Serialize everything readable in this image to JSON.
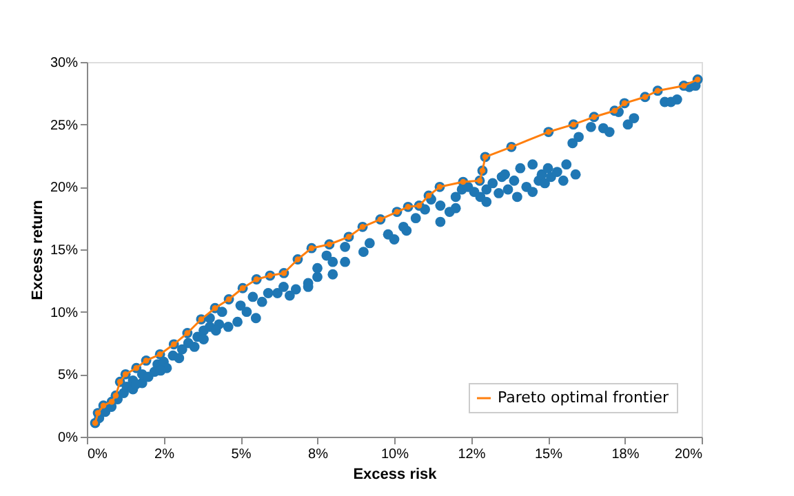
{
  "chart_data": {
    "type": "scatter",
    "xlabel": "Excess risk",
    "ylabel": "Excess return",
    "xlim": [
      0,
      20
    ],
    "ylim": [
      0,
      30
    ],
    "xticks": [
      {
        "value": 0,
        "label": "0%"
      },
      {
        "value": 2.5,
        "label": "2%"
      },
      {
        "value": 5,
        "label": "5%"
      },
      {
        "value": 7.5,
        "label": "8%"
      },
      {
        "value": 10,
        "label": "10%"
      },
      {
        "value": 12.5,
        "label": "12%"
      },
      {
        "value": 15,
        "label": "15%"
      },
      {
        "value": 17.5,
        "label": "18%"
      },
      {
        "value": 20,
        "label": "20%"
      }
    ],
    "yticks": [
      {
        "value": 0,
        "label": "0%"
      },
      {
        "value": 5,
        "label": "5%"
      },
      {
        "value": 10,
        "label": "10%"
      },
      {
        "value": 15,
        "label": "15%"
      },
      {
        "value": 20,
        "label": "20%"
      },
      {
        "value": 25,
        "label": "25%"
      },
      {
        "value": 30,
        "label": "30%"
      }
    ],
    "grid": false,
    "legend": "bottom right",
    "series": [
      {
        "color": "#1f77b4",
        "marker": "circle",
        "x": [
          0.27,
          0.36,
          0.54,
          0.81,
          0.94,
          1.08,
          1.26,
          1.61,
          1.93,
          2.38,
          2.83,
          3.27,
          3.72,
          4.17,
          4.62,
          5.07,
          5.52,
          5.96,
          6.41,
          6.86,
          7.31,
          7.89,
          8.52,
          8.97,
          9.55,
          10.09,
          10.45,
          10.81,
          11.12,
          11.48,
          12.24,
          12.78,
          12.87,
          12.96,
          13.81,
          15.02,
          15.83,
          16.5,
          17.17,
          17.49,
          18.16,
          18.57,
          19.42,
          19.87,
          0.4,
          0.6,
          0.8,
          1.0,
          1.2,
          1.3,
          1.5,
          1.5,
          1.8,
          1.8,
          2.0,
          2.2,
          2.3,
          2.5,
          2.6,
          2.8,
          3.0,
          3.1,
          3.3,
          3.5,
          3.6,
          3.8,
          4.0,
          4.0,
          4.3,
          4.4,
          4.6,
          4.9,
          5.0,
          5.2,
          5.4,
          5.7,
          5.9,
          6.2,
          6.4,
          6.8,
          7.2,
          7.5,
          7.5,
          7.8,
          8.0,
          8.4,
          8.4,
          9.0,
          9.2,
          9.8,
          10.0,
          10.4,
          10.7,
          11.0,
          11.2,
          11.5,
          11.8,
          12.0,
          12.2,
          12.4,
          12.6,
          12.8,
          13.0,
          13.2,
          13.4,
          13.5,
          13.6,
          13.7,
          13.9,
          14.1,
          14.3,
          14.5,
          14.7,
          14.8,
          14.9,
          15.0,
          15.1,
          15.3,
          15.5,
          15.6,
          15.9,
          14.0,
          13.0,
          14.5,
          15.8,
          16.0,
          16.8,
          17.0,
          17.3,
          17.6,
          17.8,
          18.8,
          19.2,
          19.6,
          19.8,
          19.0,
          16.4,
          12.0,
          11.5,
          10.3,
          8.0,
          7.2,
          6.6,
          5.5,
          4.2,
          3.8,
          2.4,
          1.6
        ],
        "values": [
          1.1,
          1.9,
          2.5,
          2.8,
          3.3,
          4.4,
          5.0,
          5.5,
          6.1,
          6.6,
          7.4,
          8.3,
          9.4,
          10.3,
          11.0,
          11.9,
          12.6,
          12.9,
          13.1,
          14.2,
          15.1,
          15.4,
          16.0,
          16.8,
          17.4,
          18.0,
          18.4,
          18.5,
          19.3,
          20.0,
          20.4,
          20.5,
          21.3,
          22.4,
          23.2,
          24.4,
          25.0,
          25.6,
          26.1,
          26.7,
          27.2,
          27.7,
          28.1,
          28.6,
          1.5,
          2.0,
          2.4,
          3.0,
          3.5,
          4.0,
          3.8,
          4.5,
          4.3,
          5.0,
          4.8,
          5.2,
          5.8,
          6.0,
          5.5,
          6.5,
          6.3,
          7.0,
          7.5,
          7.2,
          8.0,
          8.5,
          8.8,
          9.5,
          9.0,
          10.0,
          8.8,
          9.2,
          10.5,
          10.0,
          11.2,
          10.8,
          11.5,
          11.5,
          12.0,
          11.8,
          12.3,
          12.8,
          13.5,
          14.5,
          14.0,
          14.0,
          15.2,
          14.8,
          15.5,
          16.2,
          15.8,
          16.5,
          17.5,
          18.2,
          19.0,
          18.5,
          18.0,
          19.2,
          19.8,
          20.0,
          19.6,
          19.2,
          19.8,
          20.3,
          19.5,
          20.8,
          21.0,
          19.8,
          20.5,
          21.5,
          20.0,
          21.8,
          20.5,
          21.0,
          20.3,
          21.5,
          20.8,
          21.2,
          20.5,
          21.8,
          21.0,
          19.2,
          18.8,
          19.6,
          23.5,
          24.0,
          24.7,
          24.4,
          26.0,
          25.0,
          25.5,
          26.8,
          27.0,
          28.0,
          28.1,
          26.8,
          24.8,
          18.3,
          17.2,
          16.8,
          13.0,
          12.0,
          11.3,
          9.5,
          8.5,
          7.8,
          5.3,
          4.2
        ]
      },
      {
        "type": "line",
        "name": "Pareto optimal frontier",
        "color": "#ff7f0e",
        "marker": "circle",
        "line_style": "solid",
        "x": [
          0.27,
          0.36,
          0.54,
          0.81,
          0.94,
          1.08,
          1.26,
          1.61,
          1.93,
          2.38,
          2.83,
          3.27,
          3.72,
          4.17,
          4.62,
          5.07,
          5.52,
          5.96,
          6.41,
          6.86,
          7.31,
          7.89,
          8.52,
          8.97,
          9.55,
          10.09,
          10.45,
          10.81,
          11.12,
          11.48,
          12.24,
          12.78,
          12.87,
          12.96,
          13.81,
          15.02,
          15.83,
          16.5,
          17.17,
          17.49,
          18.16,
          18.57,
          19.42,
          19.87
        ],
        "values": [
          1.1,
          1.9,
          2.5,
          2.8,
          3.3,
          4.4,
          5.0,
          5.5,
          6.1,
          6.6,
          7.4,
          8.3,
          9.4,
          10.3,
          11.0,
          11.9,
          12.6,
          12.9,
          13.1,
          14.2,
          15.1,
          15.4,
          16.0,
          16.8,
          17.4,
          18.0,
          18.4,
          18.5,
          19.3,
          20.0,
          20.4,
          20.5,
          21.3,
          22.4,
          23.2,
          24.4,
          25.0,
          25.6,
          26.1,
          26.7,
          27.2,
          27.7,
          28.1,
          28.6
        ]
      }
    ]
  }
}
